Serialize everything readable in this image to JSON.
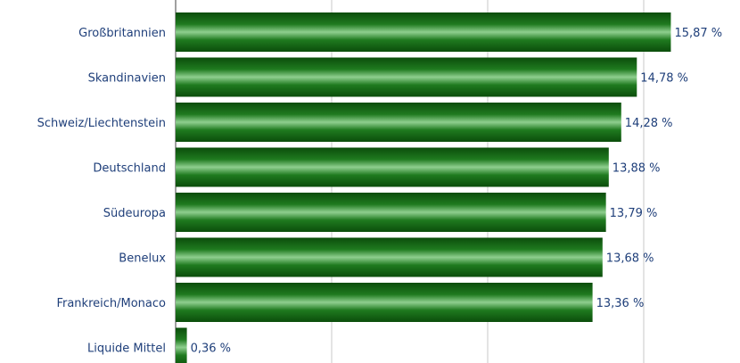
{
  "chart_data": {
    "type": "bar",
    "orientation": "horizontal",
    "categories": [
      "Großbritannien",
      "Skandinavien",
      "Schweiz/Liechtenstein",
      "Deutschland",
      "Südeuropa",
      "Benelux",
      "Frankreich/Monaco",
      "Liquide Mittel"
    ],
    "values": [
      15.87,
      14.78,
      14.28,
      13.88,
      13.79,
      13.68,
      13.36,
      0.36
    ],
    "value_labels": [
      "15,87 %",
      "14,78 %",
      "14,28 %",
      "13,88 %",
      "13,79 %",
      "13,68 %",
      "13,36 %",
      "0,36 %"
    ],
    "xlim": [
      0,
      20
    ],
    "gridlines_x": [
      0,
      5,
      10,
      15
    ],
    "grid": true,
    "legend": "none",
    "colors": {
      "bar_dark": "#0b4d0b",
      "bar_mid": "#1f7a1f",
      "bar_highlight": "#8fcf8f",
      "label": "#1f3f7a",
      "grid": "#c8c8c8",
      "axis": "#808080"
    }
  }
}
